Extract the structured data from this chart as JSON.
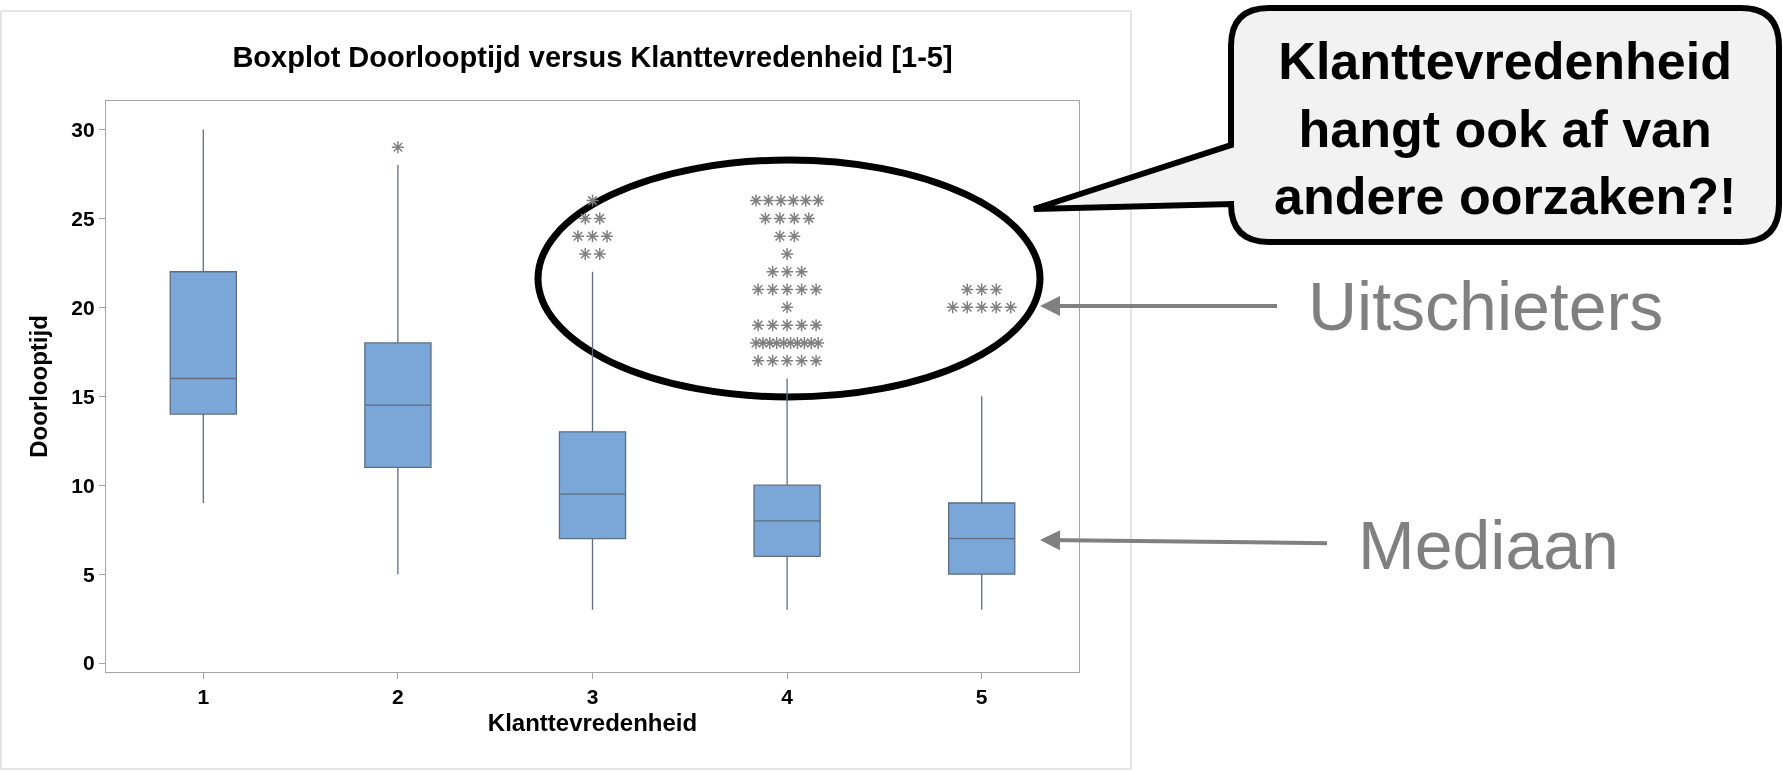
{
  "chart_data": {
    "type": "box",
    "title": "Boxplot Doorlooptijd versus Klanttevredenheid [1-5]",
    "xlabel": "Klanttevredenheid",
    "ylabel": "Doorlooptijd",
    "categories": [
      "1",
      "2",
      "3",
      "4",
      "5"
    ],
    "color": "#7ba7d8",
    "boxes": [
      {
        "low": 9,
        "q1": 14,
        "median": 16,
        "q3": 22,
        "high": 30
      },
      {
        "low": 5,
        "q1": 11,
        "median": 14.5,
        "q3": 18,
        "high": 28,
        "outliers": [
          29
        ]
      },
      {
        "low": 3,
        "q1": 7,
        "median": 9.5,
        "q3": 13,
        "high": 22,
        "outliers": [
          23,
          23,
          24,
          24,
          24,
          25,
          25,
          26
        ]
      },
      {
        "low": 3,
        "q1": 6,
        "median": 8,
        "q3": 10,
        "high": 16,
        "outliers": [
          17,
          17,
          17,
          17,
          17,
          18,
          18,
          18,
          18,
          18,
          18,
          18,
          18,
          18,
          18,
          19,
          19,
          19,
          19,
          19,
          20,
          21,
          21,
          21,
          21,
          21,
          22,
          22,
          22,
          23,
          24,
          24,
          25,
          25,
          25,
          25,
          26,
          26,
          26,
          26,
          26,
          26
        ]
      },
      {
        "low": 3,
        "q1": 5,
        "median": 7,
        "q3": 9,
        "high": 15,
        "outliers": [
          20,
          20,
          20,
          20,
          20,
          21,
          21,
          21
        ]
      }
    ],
    "ylim": [
      -0.5,
      31.6
    ],
    "yticks": [
      0,
      5,
      10,
      15,
      20,
      25,
      30
    ],
    "marker": "star",
    "annotations": [
      "Klanttevredenheid\nhangt ook af van\nandere oorzaken?!",
      "Uitschieters",
      "Mediaan"
    ]
  }
}
